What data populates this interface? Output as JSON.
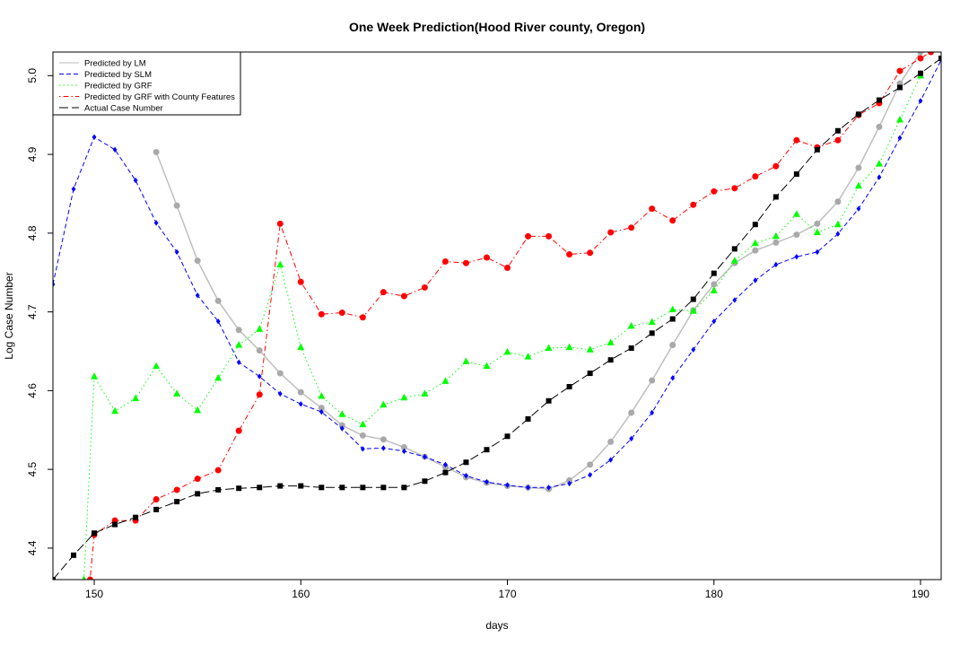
{
  "chart_data": {
    "type": "line",
    "title": "One Week Prediction(Hood River county, Oregon)",
    "xlabel": "days",
    "ylabel": "Log Case Number",
    "xlim": [
      148,
      191
    ],
    "ylim": [
      4.36,
      5.03
    ],
    "xticks": [
      "150",
      "160",
      "170",
      "180",
      "190"
    ],
    "yticks": [
      "4.4",
      "4.5",
      "4.6",
      "4.7",
      "4.8",
      "4.9",
      "5.0"
    ],
    "legend_position": "top-left",
    "series": [
      {
        "name": "Predicted by LM",
        "color": "#bebebe",
        "marker_color": "#a9a9a9",
        "line_style": "solid",
        "marker": "circle",
        "x": [
          153,
          154,
          155,
          156,
          157,
          158,
          159,
          160,
          161,
          162,
          163,
          164,
          165,
          166,
          167,
          168,
          169,
          170,
          171,
          172,
          173,
          174,
          175,
          176,
          177,
          178,
          179,
          180,
          181,
          182,
          183,
          184,
          185,
          186,
          187,
          188,
          189,
          190
        ],
        "y": [
          4.903,
          4.835,
          4.765,
          4.714,
          4.677,
          4.651,
          4.622,
          4.598,
          4.578,
          4.556,
          4.543,
          4.538,
          4.528,
          4.516,
          4.503,
          4.49,
          4.483,
          4.479,
          4.477,
          4.475,
          4.486,
          4.506,
          4.535,
          4.572,
          4.613,
          4.658,
          4.702,
          4.735,
          4.762,
          4.778,
          4.788,
          4.798,
          4.812,
          4.84,
          4.883,
          4.935,
          4.99,
          5.03
        ]
      },
      {
        "name": "Predicted by SLM",
        "color": "#0000ff",
        "line_style": "dashed",
        "marker": "diamond",
        "x": [
          148,
          149,
          150,
          151,
          152,
          153,
          154,
          155,
          156,
          157,
          158,
          159,
          160,
          161,
          162,
          163,
          164,
          165,
          166,
          167,
          168,
          169,
          170,
          171,
          172,
          173,
          174,
          175,
          176,
          177,
          178,
          179,
          180,
          181,
          182,
          183,
          184,
          185,
          186,
          187,
          188,
          189,
          190,
          191
        ],
        "y": [
          4.735,
          4.856,
          4.922,
          4.906,
          4.867,
          4.813,
          4.776,
          4.721,
          4.688,
          4.636,
          4.618,
          4.596,
          4.583,
          4.573,
          4.552,
          4.526,
          4.527,
          4.523,
          4.516,
          4.506,
          4.492,
          4.484,
          4.48,
          4.477,
          4.477,
          4.482,
          4.493,
          4.512,
          4.539,
          4.572,
          4.616,
          4.652,
          4.688,
          4.715,
          4.74,
          4.76,
          4.77,
          4.776,
          4.799,
          4.831,
          4.871,
          4.921,
          4.968,
          5.02
        ]
      },
      {
        "name": "Predicted by GRF",
        "color": "#00ff00",
        "line_style": "dotted",
        "marker": "triangle",
        "x": [
          149.5,
          150,
          151,
          152,
          153,
          154,
          155,
          156,
          157,
          158,
          159,
          160,
          161,
          162,
          163,
          164,
          165,
          166,
          167,
          168,
          169,
          170,
          171,
          172,
          173,
          174,
          175,
          176,
          177,
          178,
          179,
          180,
          181,
          182,
          183,
          184,
          185,
          186,
          187,
          188,
          189,
          190
        ],
        "y": [
          4.36,
          4.618,
          4.574,
          4.59,
          4.631,
          4.596,
          4.575,
          4.616,
          4.658,
          4.678,
          4.76,
          4.655,
          4.593,
          4.57,
          4.557,
          4.582,
          4.591,
          4.596,
          4.612,
          4.637,
          4.631,
          4.649,
          4.643,
          4.654,
          4.655,
          4.652,
          4.661,
          4.682,
          4.687,
          4.703,
          4.701,
          4.727,
          4.765,
          4.787,
          4.796,
          4.824,
          4.801,
          4.811,
          4.86,
          4.888,
          4.944,
          5.0
        ]
      },
      {
        "name": "Predicted by GRF with County Features",
        "color": "#ff0000",
        "line_style": "dotdash",
        "marker": "circle",
        "x": [
          149.8,
          150,
          151,
          152,
          153,
          154,
          155,
          156,
          157,
          158,
          159,
          160,
          161,
          162,
          163,
          164,
          165,
          166,
          167,
          168,
          169,
          170,
          171,
          172,
          173,
          174,
          175,
          176,
          177,
          178,
          179,
          180,
          181,
          182,
          183,
          184,
          185,
          186,
          187,
          188,
          189,
          190,
          190.5
        ],
        "y": [
          4.36,
          4.417,
          4.435,
          4.435,
          4.462,
          4.474,
          4.488,
          4.499,
          4.549,
          4.595,
          4.812,
          4.738,
          4.697,
          4.699,
          4.693,
          4.725,
          4.72,
          4.731,
          4.764,
          4.762,
          4.769,
          4.756,
          4.796,
          4.796,
          4.773,
          4.775,
          4.801,
          4.807,
          4.831,
          4.816,
          4.836,
          4.853,
          4.857,
          4.872,
          4.885,
          4.918,
          4.909,
          4.918,
          4.95,
          4.965,
          5.006,
          5.022,
          5.03
        ]
      },
      {
        "name": "Actual Case Number",
        "color": "#000000",
        "line_style": "longdash",
        "marker": "square",
        "x": [
          148,
          149,
          150,
          151,
          152,
          153,
          154,
          155,
          156,
          157,
          158,
          159,
          160,
          161,
          162,
          163,
          164,
          165,
          166,
          167,
          168,
          169,
          170,
          171,
          172,
          173,
          174,
          175,
          176,
          177,
          178,
          179,
          180,
          181,
          182,
          183,
          184,
          185,
          186,
          187,
          188,
          189,
          190,
          191
        ],
        "y": [
          4.36,
          4.391,
          4.419,
          4.43,
          4.439,
          4.449,
          4.459,
          4.469,
          4.474,
          4.476,
          4.477,
          4.479,
          4.479,
          4.477,
          4.477,
          4.477,
          4.477,
          4.477,
          4.485,
          4.496,
          4.509,
          4.525,
          4.542,
          4.564,
          4.587,
          4.605,
          4.622,
          4.639,
          4.654,
          4.673,
          4.691,
          4.716,
          4.749,
          4.78,
          4.811,
          4.846,
          4.875,
          4.906,
          4.93,
          4.951,
          4.969,
          4.985,
          5.003,
          5.022
        ]
      }
    ]
  }
}
